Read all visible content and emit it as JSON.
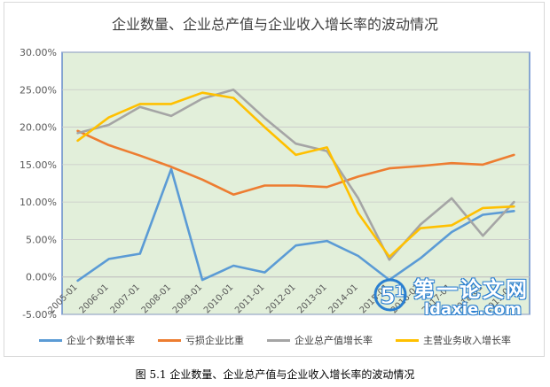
{
  "chart_data": {
    "type": "line",
    "title": "企业数量、企业总产值与企业收入增长率的波动情况",
    "categories": [
      "2005-01",
      "2006-01",
      "2007-01",
      "2008-01",
      "2009-01",
      "2010-01",
      "2011-01",
      "2012-01",
      "2013-01",
      "2014-01",
      "2015-01",
      "2016-01",
      "2017-01",
      "2018-01",
      "2019-01"
    ],
    "ylim": [
      -5,
      30
    ],
    "yticks": [
      "-5.00%",
      "0.00%",
      "5.00%",
      "10.00%",
      "15.00%",
      "20.00%",
      "25.00%",
      "30.00%"
    ],
    "grid": true,
    "legend_position": "bottom",
    "plot_background": "#e2efda",
    "series": [
      {
        "name": "企业个数增长率",
        "color": "#5b9bd5",
        "values": [
          -0.5,
          2.4,
          3.1,
          14.4,
          -0.4,
          1.5,
          0.6,
          4.2,
          4.8,
          2.8,
          -0.4,
          2.5,
          6.0,
          8.3,
          8.8
        ]
      },
      {
        "name": "亏损企业比重",
        "color": "#ed7d31",
        "values": [
          19.5,
          17.6,
          16.2,
          14.7,
          13.0,
          11.0,
          12.2,
          12.2,
          12.0,
          13.4,
          14.5,
          14.8,
          15.2,
          15.0,
          16.3
        ]
      },
      {
        "name": "企业总产值增长率",
        "color": "#a5a5a5",
        "values": [
          19.2,
          20.3,
          22.7,
          21.5,
          23.8,
          25.0,
          21.2,
          17.8,
          16.8,
          10.5,
          2.3,
          7.0,
          10.5,
          5.5,
          10.0
        ]
      },
      {
        "name": "主营业务收入增长率",
        "color": "#ffc000",
        "values": [
          18.2,
          21.3,
          23.1,
          23.1,
          24.6,
          23.9,
          20.0,
          16.3,
          17.3,
          8.5,
          2.7,
          6.5,
          6.9,
          9.2,
          9.4
        ]
      }
    ]
  },
  "caption": "图 5.1  企业数量、企业总产值与企业收入增长率的波动情况",
  "watermark": {
    "cn": "第一论文网",
    "en": "ldaxie.com"
  }
}
